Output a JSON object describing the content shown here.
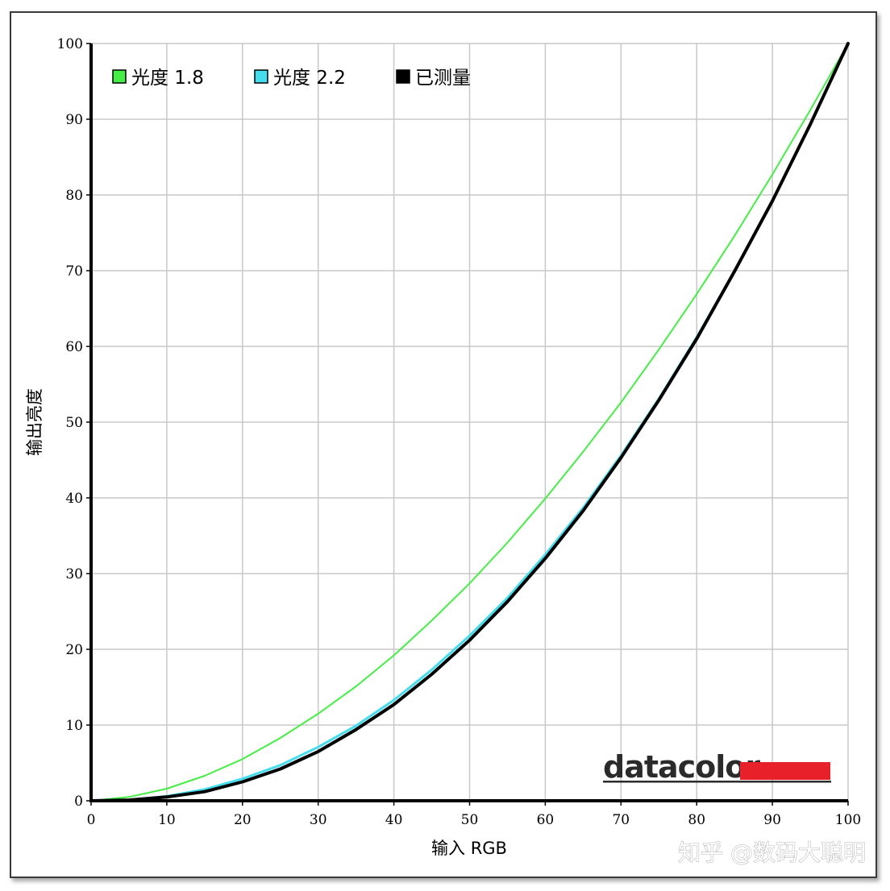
{
  "chart_data": {
    "type": "line",
    "xlabel": "输入 RGB",
    "ylabel": "输出亮度",
    "xlim": [
      0,
      100
    ],
    "ylim": [
      0,
      100
    ],
    "x_ticks": [
      0,
      10,
      20,
      30,
      40,
      50,
      60,
      70,
      80,
      90,
      100
    ],
    "y_ticks": [
      0,
      10,
      20,
      30,
      40,
      50,
      60,
      70,
      80,
      90,
      100
    ],
    "grid": true,
    "legend_position": "top-left",
    "series": [
      {
        "name": "光度 1.8",
        "color": "#44ee44",
        "x": [
          0,
          5,
          10,
          15,
          20,
          25,
          30,
          35,
          40,
          45,
          50,
          55,
          60,
          65,
          70,
          75,
          80,
          85,
          90,
          95,
          100
        ],
        "y": [
          0,
          0.5,
          1.6,
          3.3,
          5.5,
          8.3,
          11.5,
          15.1,
          19.2,
          23.8,
          28.7,
          34.1,
          39.9,
          46.1,
          52.6,
          59.6,
          66.9,
          74.6,
          82.7,
          91.2,
          100
        ]
      },
      {
        "name": "光度 2.2",
        "color": "#44ddee",
        "x": [
          0,
          5,
          10,
          15,
          20,
          25,
          30,
          35,
          40,
          45,
          50,
          55,
          60,
          65,
          70,
          75,
          80,
          85,
          90,
          95,
          100
        ],
        "y": [
          0,
          0.1,
          0.6,
          1.5,
          2.9,
          4.7,
          7.1,
          9.9,
          13.3,
          17.3,
          21.8,
          26.8,
          32.5,
          38.7,
          45.6,
          53.1,
          61.2,
          70.0,
          79.3,
          89.3,
          100
        ]
      },
      {
        "name": "已测量",
        "color": "#000000",
        "x": [
          0,
          5,
          10,
          15,
          20,
          25,
          30,
          35,
          40,
          45,
          50,
          55,
          60,
          65,
          70,
          75,
          80,
          85,
          90,
          95,
          100
        ],
        "y": [
          0,
          0.1,
          0.5,
          1.2,
          2.5,
          4.2,
          6.5,
          9.4,
          12.7,
          16.7,
          21.2,
          26.3,
          32.0,
          38.3,
          45.3,
          52.9,
          61.0,
          69.9,
          79.2,
          89.3,
          100
        ]
      }
    ]
  },
  "brand": {
    "name": "datacolor",
    "accent_color": "#e8202a"
  },
  "watermark": {
    "text": "知乎 @数码大聪明"
  }
}
